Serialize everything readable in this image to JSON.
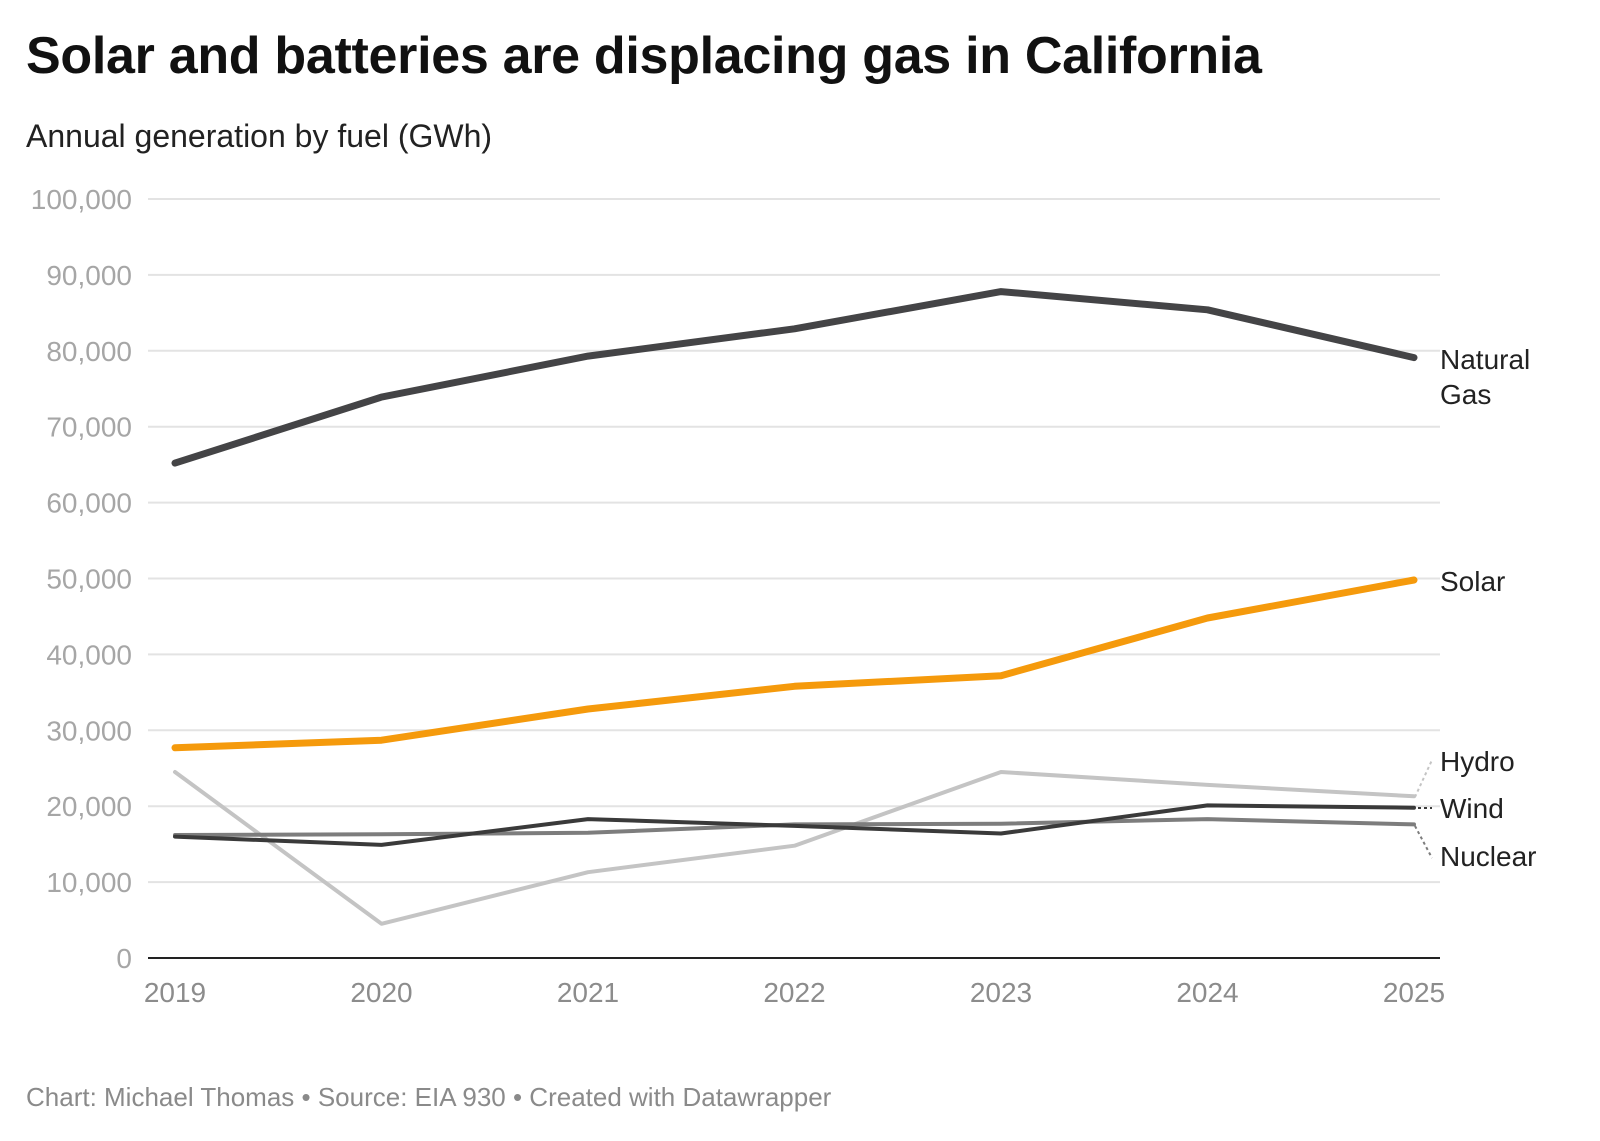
{
  "header": {
    "title": "Solar and batteries are displacing gas in California",
    "subtitle": "Annual generation by fuel (GWh)"
  },
  "footer": {
    "credit": "Chart: Michael Thomas • Source: EIA 930 • Created with Datawrapper"
  },
  "chart_data": {
    "type": "line",
    "title": "Solar and batteries are displacing gas in California",
    "subtitle": "Annual generation by fuel (GWh)",
    "x": [
      2019,
      2020,
      2021,
      2022,
      2023,
      2024,
      2025
    ],
    "x_tick_labels": [
      "2019",
      "2020",
      "2021",
      "2022",
      "2023",
      "2024",
      "2025"
    ],
    "ylim": [
      0,
      100000
    ],
    "y_ticks": [
      0,
      10000,
      20000,
      30000,
      40000,
      50000,
      60000,
      70000,
      80000,
      90000,
      100000
    ],
    "y_tick_labels": [
      "0",
      "10,000",
      "20,000",
      "30,000",
      "40,000",
      "50,000",
      "60,000",
      "70,000",
      "80,000",
      "90,000",
      "100,000"
    ],
    "grid": true,
    "legend": "direct labels at line ends (right)",
    "series": [
      {
        "name": "Hydro",
        "label_lines": [
          "Hydro"
        ],
        "color": "#c4c4c4",
        "values": [
          24500,
          4500,
          11300,
          14800,
          24500,
          22800,
          21300
        ]
      },
      {
        "name": "Nuclear",
        "label_lines": [
          "Nuclear"
        ],
        "color": "#7d7d7d",
        "values": [
          16200,
          16300,
          16500,
          17600,
          17700,
          18300,
          17600
        ]
      },
      {
        "name": "Wind",
        "label_lines": [
          "Wind"
        ],
        "color": "#3a3a3a",
        "values": [
          16000,
          14900,
          18300,
          17400,
          16400,
          20100,
          19800
        ]
      },
      {
        "name": "Solar",
        "label_lines": [
          "Solar"
        ],
        "color": "#f59a0c",
        "values": [
          27700,
          28700,
          32800,
          35800,
          37200,
          44800,
          49800
        ]
      },
      {
        "name": "Natural Gas",
        "label_lines": [
          "Natural",
          "Gas"
        ],
        "color": "#444446",
        "values": [
          65200,
          73900,
          79300,
          82900,
          87800,
          85400,
          79100
        ]
      }
    ]
  }
}
